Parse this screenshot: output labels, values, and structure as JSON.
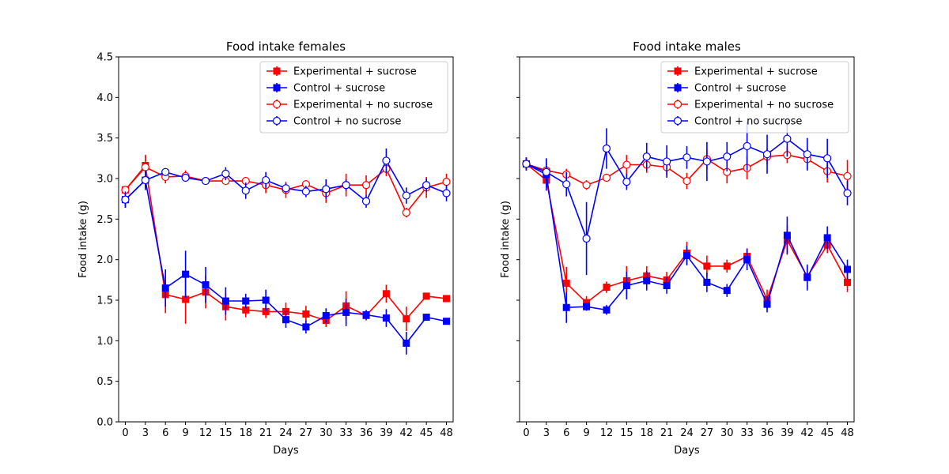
{
  "chart_data": [
    {
      "type": "line",
      "title": "Food intake females",
      "xlabel": "Days",
      "ylabel": "Food intake (g)",
      "x": [
        0,
        3,
        6,
        9,
        12,
        15,
        18,
        21,
        24,
        27,
        30,
        33,
        36,
        39,
        42,
        45,
        48
      ],
      "xticks": [
        "0",
        "3",
        "6",
        "9",
        "12",
        "15",
        "18",
        "21",
        "24",
        "27",
        "30",
        "33",
        "36",
        "39",
        "42",
        "45",
        "48"
      ],
      "xlim": [
        -1,
        49
      ],
      "ylim": [
        0,
        4.5
      ],
      "yticks": [
        "0.0",
        "0.5",
        "1.0",
        "1.5",
        "2.0",
        "2.5",
        "3.0",
        "3.5",
        "4.0",
        "4.5"
      ],
      "show_ytick_labels": true,
      "grid": false,
      "legend_position": "upper-right",
      "series": [
        {
          "name": "Experimental + sucrose",
          "color": "#ff0000",
          "marker": "square",
          "values": [
            2.86,
            3.16,
            1.57,
            1.51,
            1.6,
            1.42,
            1.38,
            1.36,
            1.36,
            1.33,
            1.25,
            1.43,
            1.31,
            1.58,
            1.27,
            1.55,
            1.52
          ],
          "errors": [
            0.03,
            0.13,
            0.23,
            0.3,
            0.2,
            0.17,
            0.09,
            0.08,
            0.11,
            0.1,
            0.08,
            0.18,
            0.06,
            0.11,
            0.15,
            0.03,
            0.03
          ]
        },
        {
          "name": "Control + sucrose",
          "color": "#0000ff",
          "marker": "square",
          "values": [
            2.74,
            2.98,
            1.65,
            1.82,
            1.69,
            1.49,
            1.49,
            1.5,
            1.26,
            1.17,
            1.31,
            1.35,
            1.32,
            1.28,
            0.97,
            1.29,
            1.24
          ],
          "errors": [
            0.1,
            0.12,
            0.23,
            0.29,
            0.22,
            0.17,
            0.09,
            0.13,
            0.1,
            0.08,
            0.09,
            0.17,
            0.06,
            0.11,
            0.14,
            0.03,
            0.03
          ]
        },
        {
          "name": "Experimental + no sucrose",
          "color": "#ff0000",
          "marker": "circle",
          "values": [
            2.86,
            3.14,
            3.02,
            3.03,
            2.97,
            2.97,
            2.97,
            2.92,
            2.86,
            2.93,
            2.82,
            2.92,
            2.92,
            3.12,
            2.58,
            2.89,
            2.96
          ],
          "errors": [
            0.03,
            0.15,
            0.08,
            0.07,
            0.04,
            0.05,
            0.05,
            0.1,
            0.1,
            0.05,
            0.12,
            0.14,
            0.12,
            0.09,
            0.06,
            0.13,
            0.1
          ]
        },
        {
          "name": "Control + no sucrose",
          "color": "#0000ff",
          "marker": "circle",
          "values": [
            2.74,
            2.98,
            3.08,
            3.01,
            2.97,
            3.06,
            2.85,
            2.98,
            2.88,
            2.84,
            2.87,
            2.92,
            2.72,
            3.22,
            2.79,
            2.92,
            2.82
          ],
          "errors": [
            0.1,
            0.12,
            0.04,
            0.04,
            0.03,
            0.08,
            0.1,
            0.1,
            0.06,
            0.07,
            0.12,
            0.07,
            0.08,
            0.15,
            0.1,
            0.08,
            0.1
          ]
        }
      ]
    },
    {
      "type": "line",
      "title": "Food intake males",
      "xlabel": "Days",
      "ylabel": "Food intake (g)",
      "x": [
        0,
        3,
        6,
        9,
        12,
        15,
        18,
        21,
        24,
        27,
        30,
        33,
        36,
        39,
        42,
        45,
        48
      ],
      "xticks": [
        "0",
        "3",
        "6",
        "9",
        "12",
        "15",
        "18",
        "21",
        "24",
        "27",
        "30",
        "33",
        "36",
        "39",
        "42",
        "45",
        "48"
      ],
      "xlim": [
        -1,
        49
      ],
      "ylim": [
        0,
        4.5
      ],
      "yticks": [
        "0.0",
        "0.5",
        "1.0",
        "1.5",
        "2.0",
        "2.5",
        "3.0",
        "3.5",
        "4.0",
        "4.5"
      ],
      "show_ytick_labels": false,
      "grid": false,
      "legend_position": "upper-right",
      "series": [
        {
          "name": "Experimental + sucrose",
          "color": "#ff0000",
          "marker": "square",
          "values": [
            3.18,
            2.98,
            1.71,
            1.47,
            1.66,
            1.74,
            1.8,
            1.75,
            2.08,
            1.92,
            1.92,
            2.04,
            1.51,
            2.24,
            1.79,
            2.18,
            1.72
          ],
          "errors": [
            0.08,
            0.1,
            0.2,
            0.08,
            0.07,
            0.18,
            0.12,
            0.1,
            0.14,
            0.13,
            0.08,
            0.1,
            0.12,
            0.18,
            0.12,
            0.1,
            0.12
          ]
        },
        {
          "name": "Control + sucrose",
          "color": "#0000ff",
          "marker": "square",
          "values": [
            3.18,
            3.05,
            1.41,
            1.42,
            1.38,
            1.68,
            1.74,
            1.68,
            2.05,
            1.72,
            1.62,
            2.0,
            1.45,
            2.3,
            1.78,
            2.27,
            1.88
          ],
          "errors": [
            0.08,
            0.2,
            0.19,
            0.05,
            0.06,
            0.17,
            0.12,
            0.1,
            0.12,
            0.12,
            0.08,
            0.13,
            0.1,
            0.23,
            0.16,
            0.14,
            0.12
          ]
        },
        {
          "name": "Experimental + no sucrose",
          "color": "#ff0000",
          "marker": "circle",
          "values": [
            3.18,
            3.1,
            3.05,
            2.92,
            3.01,
            3.17,
            3.17,
            3.14,
            2.97,
            3.24,
            3.08,
            3.13,
            3.27,
            3.29,
            3.24,
            3.09,
            3.03
          ],
          "errors": [
            0.08,
            0.08,
            0.07,
            0.06,
            0.05,
            0.12,
            0.1,
            0.1,
            0.1,
            0.12,
            0.14,
            0.14,
            0.1,
            0.1,
            0.14,
            0.14,
            0.2
          ]
        },
        {
          "name": "Control + no sucrose",
          "color": "#0000ff",
          "marker": "circle",
          "values": [
            3.18,
            3.08,
            2.93,
            2.26,
            3.37,
            2.96,
            3.27,
            3.21,
            3.26,
            3.21,
            3.27,
            3.4,
            3.3,
            3.49,
            3.3,
            3.25,
            2.82
          ],
          "errors": [
            0.08,
            0.15,
            0.15,
            0.45,
            0.25,
            0.1,
            0.17,
            0.2,
            0.14,
            0.24,
            0.18,
            0.3,
            0.24,
            0.22,
            0.2,
            0.24,
            0.15
          ]
        }
      ]
    }
  ]
}
